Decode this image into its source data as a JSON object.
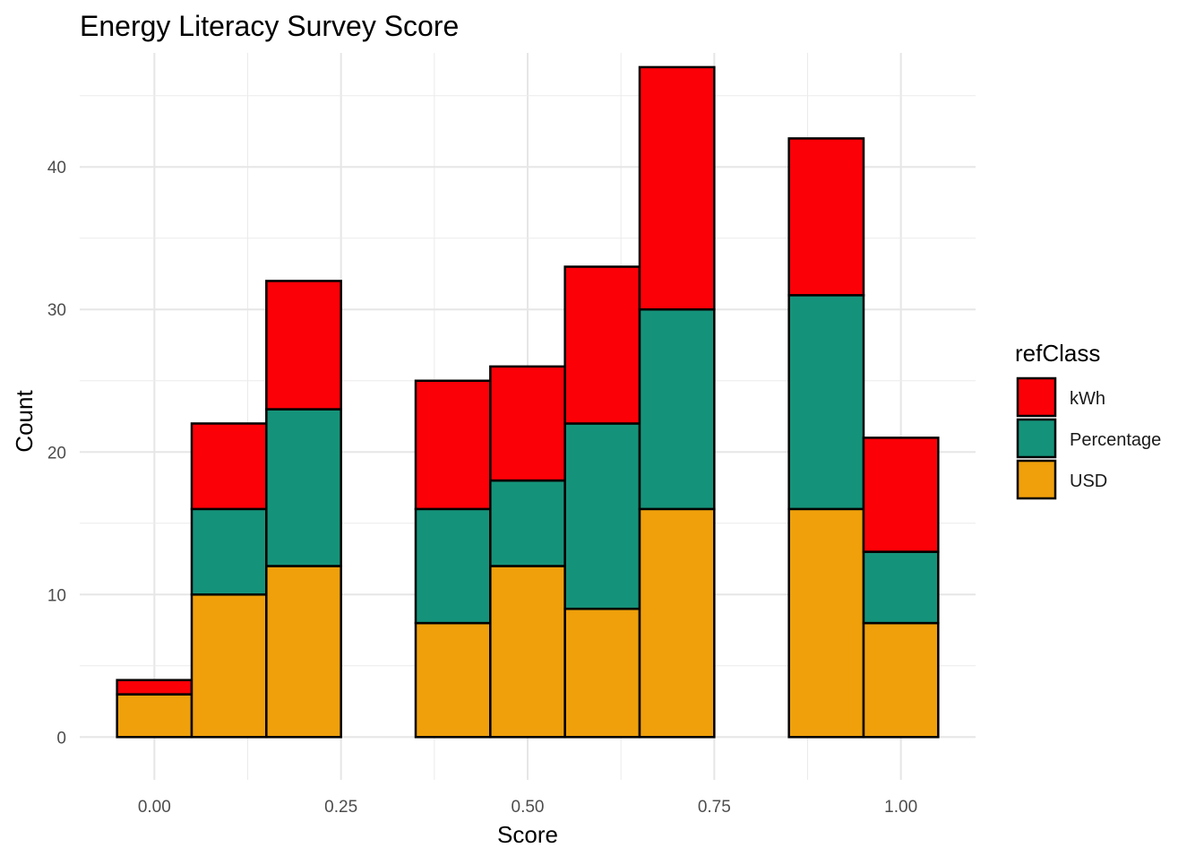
{
  "chart_data": {
    "type": "bar",
    "stacked": true,
    "title": "Energy Literacy Survey Score",
    "xlabel": "Score",
    "ylabel": "Count",
    "x": [
      0.0,
      0.1,
      0.2,
      0.3,
      0.4,
      0.5,
      0.6,
      0.7,
      0.8,
      0.9,
      1.0
    ],
    "bin_width": 0.1,
    "xlim": [
      -0.1,
      1.1
    ],
    "ylim": [
      -3,
      48
    ],
    "x_ticks": [
      0.0,
      0.25,
      0.5,
      0.75,
      1.0
    ],
    "x_tick_labels": [
      "0.00",
      "0.25",
      "0.50",
      "0.75",
      "1.00"
    ],
    "y_ticks": [
      0,
      10,
      20,
      30,
      40
    ],
    "y_tick_labels": [
      "0",
      "10",
      "20",
      "30",
      "40"
    ],
    "grid": true,
    "legend": {
      "title": "refClass",
      "position": "right",
      "entries": [
        "kWh",
        "Percentage",
        "USD"
      ]
    },
    "series": [
      {
        "name": "USD",
        "color": "#EFA00B",
        "values": [
          3,
          10,
          12,
          0,
          8,
          12,
          9,
          16,
          0,
          16,
          8
        ]
      },
      {
        "name": "Percentage",
        "color": "#15937A",
        "values": [
          0,
          6,
          11,
          0,
          8,
          6,
          13,
          14,
          0,
          15,
          5
        ]
      },
      {
        "name": "kWh",
        "color": "#FC0007",
        "values": [
          1,
          6,
          9,
          0,
          9,
          8,
          11,
          17,
          0,
          11,
          8
        ]
      }
    ]
  }
}
